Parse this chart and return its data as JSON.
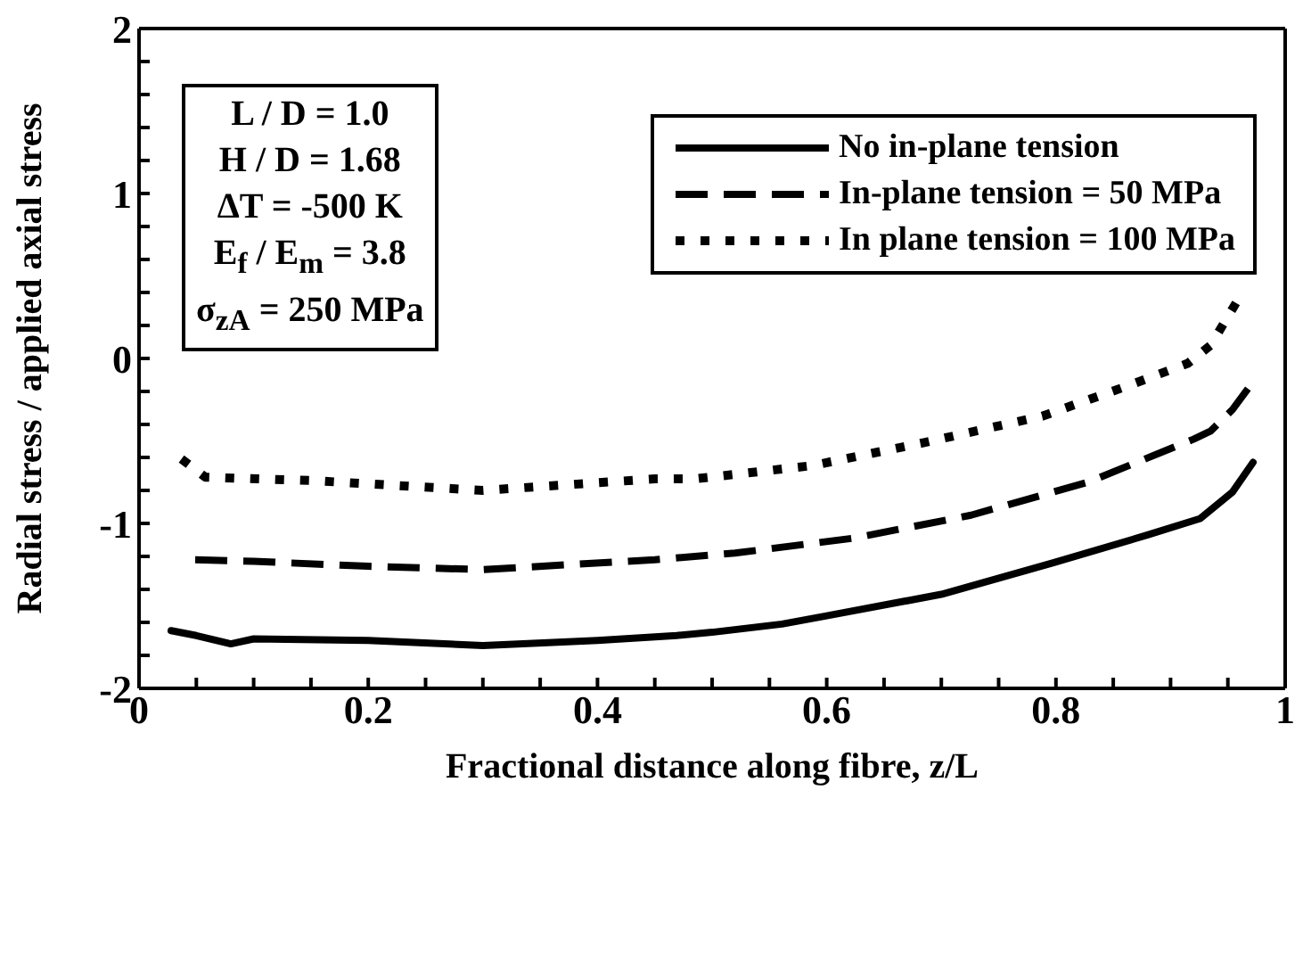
{
  "chart_data": {
    "type": "line",
    "xlabel": "Fractional distance along fibre, z/L",
    "ylabel": "Radial stress / applied axial stress",
    "xlim": [
      0,
      1
    ],
    "ylim": [
      -2,
      2
    ],
    "xticks": [
      0,
      {
        "value": 0.05,
        "label": null
      },
      {
        "value": 0.1,
        "label": null
      },
      {
        "value": 0.15,
        "label": null
      },
      {
        "value": 0.2,
        "label": "0.2"
      },
      {
        "value": 0.25,
        "label": null
      },
      {
        "value": 0.3,
        "label": null
      },
      {
        "value": 0.35,
        "label": null
      },
      {
        "value": 0.4,
        "label": "0.4"
      },
      {
        "value": 0.45,
        "label": null
      },
      {
        "value": 0.5,
        "label": null
      },
      {
        "value": 0.55,
        "label": null
      },
      {
        "value": 0.6,
        "label": "0.6"
      },
      {
        "value": 0.65,
        "label": null
      },
      {
        "value": 0.7,
        "label": null
      },
      {
        "value": 0.75,
        "label": null
      },
      {
        "value": 0.8,
        "label": "0.8"
      },
      {
        "value": 0.85,
        "label": null
      },
      {
        "value": 0.9,
        "label": null
      },
      {
        "value": 0.95,
        "label": null
      },
      1
    ],
    "yticks": [
      -2,
      {
        "value": -1.8,
        "label": null
      },
      {
        "value": -1.6,
        "label": null
      },
      {
        "value": -1.4,
        "label": null
      },
      {
        "value": -1.2,
        "label": null
      },
      -1,
      {
        "value": -0.8,
        "label": null
      },
      {
        "value": -0.6,
        "label": null
      },
      {
        "value": -0.4,
        "label": null
      },
      {
        "value": -0.2,
        "label": null
      },
      0,
      {
        "value": 0.2,
        "label": null
      },
      {
        "value": 0.4,
        "label": null
      },
      {
        "value": 0.6,
        "label": null
      },
      {
        "value": 0.8,
        "label": null
      },
      1,
      {
        "value": 1.2,
        "label": null
      },
      {
        "value": 1.4,
        "label": null
      },
      {
        "value": 1.6,
        "label": null
      },
      {
        "value": 1.8,
        "label": null
      },
      2
    ],
    "grid": false,
    "legend": "top right",
    "marker": "none",
    "annotations": [
      "L / D = 1.0",
      "H / D = 1.68",
      "ΔT = -500 K",
      "E$_{f}$ / E$_{m}$ = 3.8",
      "σ$_{zA}$ = 250 MPa"
    ],
    "series": [
      {
        "name": "No in-plane tension",
        "color": "#000000",
        "line_style": "solid",
        "x": [
          0.028,
          0.05,
          0.08,
          0.1,
          0.2,
          0.3,
          0.4,
          0.469,
          0.5,
          0.561,
          0.6,
          0.7,
          0.797,
          0.88,
          0.926,
          0.954,
          0.972
        ],
        "values": [
          -1.65,
          -1.68,
          -1.73,
          -1.7,
          -1.71,
          -1.74,
          -1.71,
          -1.68,
          -1.66,
          -1.61,
          -1.56,
          -1.43,
          -1.24,
          -1.07,
          -0.97,
          -0.81,
          -0.63
        ]
      },
      {
        "name": "In-plane tension = 50 MPa",
        "color": "#000000",
        "line_style": "dashed",
        "x": [
          0.049,
          0.1,
          0.2,
          0.3,
          0.45,
          0.52,
          0.623,
          0.726,
          0.828,
          0.92,
          0.935,
          0.954,
          0.971
        ],
        "values": [
          -1.22,
          -1.23,
          -1.26,
          -1.28,
          -1.22,
          -1.18,
          -1.09,
          -0.95,
          -0.75,
          -0.49,
          -0.44,
          -0.31,
          -0.15
        ]
      },
      {
        "name": "In plane tension = 100 MPa",
        "color": "#000000",
        "line_style": "dotted",
        "x": [
          0.037,
          0.058,
          0.15,
          0.3,
          0.45,
          0.485,
          0.587,
          0.685,
          0.788,
          0.865,
          0.915,
          0.935,
          0.96
        ],
        "values": [
          -0.61,
          -0.72,
          -0.74,
          -0.8,
          -0.73,
          -0.73,
          -0.65,
          -0.51,
          -0.35,
          -0.16,
          -0.03,
          0.08,
          0.37
        ]
      }
    ]
  }
}
